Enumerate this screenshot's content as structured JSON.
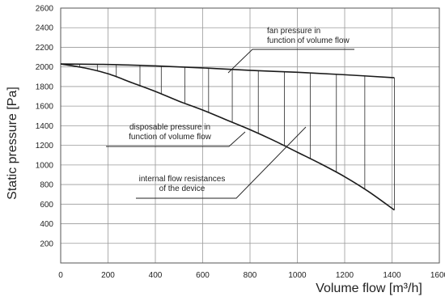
{
  "chart_data": {
    "type": "line",
    "xlabel": "Volume flow [m³/h]",
    "ylabel": "Static pressure [Pa]",
    "xlim": [
      0,
      1600
    ],
    "ylim": [
      0,
      2600
    ],
    "x_ticks": [
      0,
      200,
      400,
      600,
      800,
      1000,
      1200,
      1400,
      1600
    ],
    "y_ticks": [
      200,
      400,
      600,
      800,
      1000,
      1200,
      1400,
      1600,
      1800,
      2000,
      2200,
      2400,
      2600
    ],
    "grid": true,
    "series": [
      {
        "key": "fan",
        "x": [
          0,
          200,
          400,
          600,
          800,
          1000,
          1200,
          1410
        ],
        "y": [
          2030,
          2025,
          2010,
          1990,
          1965,
          1945,
          1920,
          1890
        ]
      },
      {
        "key": "disposable",
        "x": [
          0,
          100,
          200,
          300,
          400,
          500,
          600,
          700,
          800,
          900,
          1000,
          1100,
          1200,
          1300,
          1410
        ],
        "y": [
          2030,
          1990,
          1930,
          1840,
          1750,
          1650,
          1560,
          1460,
          1360,
          1250,
          1130,
          1010,
          880,
          730,
          540
        ]
      }
    ],
    "hatch_x": [
      80,
      155,
      235,
      335,
      425,
      525,
      625,
      725,
      835,
      945,
      1055,
      1165,
      1285,
      1410
    ],
    "annotations": [
      {
        "lines": [
          "fan pressure in",
          "function of volume flow"
        ]
      },
      {
        "lines": [
          "disposable pressure in",
          "function of volume flow"
        ]
      },
      {
        "lines": [
          "internal flow resistances",
          "of the device"
        ]
      }
    ],
    "colors": {
      "curve": "#1a1a1a",
      "grid": "#9a9a9a",
      "hatch": "#2a2a2a"
    }
  }
}
